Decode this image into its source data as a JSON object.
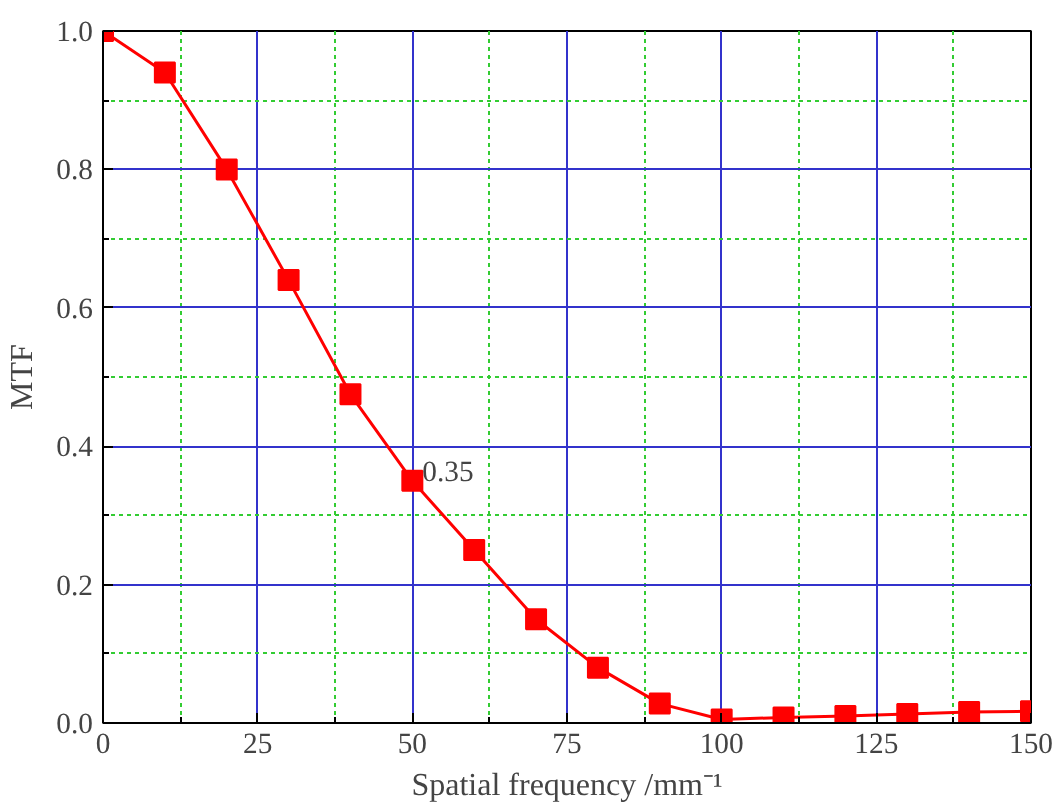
{
  "chart_data": {
    "type": "line",
    "xlabel": "Spatial frequency /mm⁻¹",
    "ylabel": "MTF",
    "x": [
      0,
      10,
      20,
      30,
      40,
      50,
      60,
      70,
      80,
      90,
      100,
      110,
      120,
      130,
      140,
      150
    ],
    "series": [
      {
        "color": "#ff0000",
        "values": [
          1.0,
          0.94,
          0.8,
          0.64,
          0.475,
          0.35,
          0.25,
          0.15,
          0.08,
          0.028,
          0.005,
          0.008,
          0.01,
          0.013,
          0.016,
          0.017
        ]
      }
    ],
    "xlim": [
      0,
      150
    ],
    "ylim": [
      0,
      1.0
    ],
    "xticks": [
      0,
      {
        "value": 12.5,
        "label": null
      },
      25,
      {
        "value": 37.5,
        "label": null
      },
      50,
      {
        "value": 62.5,
        "label": null
      },
      75,
      {
        "value": 87.5,
        "label": null
      },
      100,
      {
        "value": 112.5,
        "label": null
      },
      125,
      {
        "value": 137.5,
        "label": null
      },
      150
    ],
    "yticks": [
      {
        "value": 0,
        "label": "0.0"
      },
      {
        "value": 0.1,
        "label": null
      },
      0.2,
      {
        "value": 0.3,
        "label": null
      },
      0.4,
      {
        "value": 0.5,
        "label": null
      },
      0.6,
      {
        "value": 0.7,
        "label": null
      },
      0.8,
      {
        "value": 0.9,
        "label": null
      },
      {
        "value": 1.0,
        "label": "1.0"
      }
    ],
    "grid": true,
    "marker": "square",
    "line_style": "solid",
    "annotations": [
      {
        "text": "0.35",
        "x": 50,
        "y": 0.35
      }
    ]
  }
}
